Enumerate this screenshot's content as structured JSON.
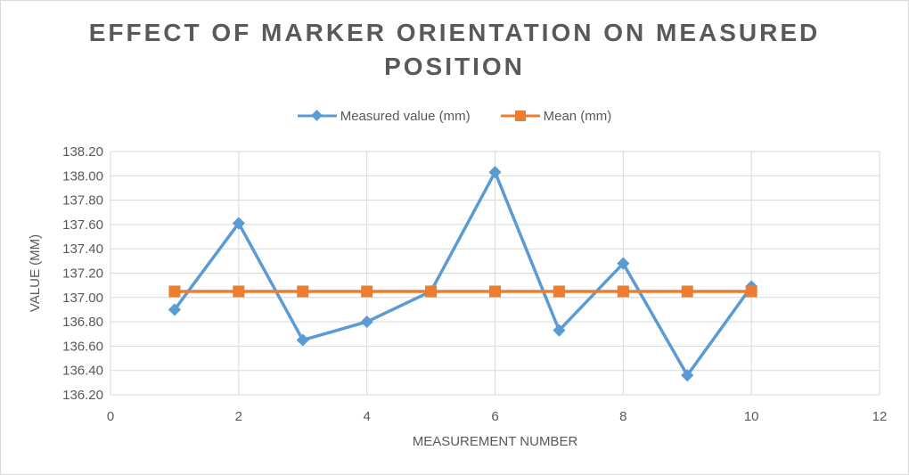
{
  "chart_data": {
    "type": "line",
    "title": "EFFECT OF MARKER ORIENTATION ON MEASURED POSITION",
    "xlabel": "MEASUREMENT NUMBER",
    "ylabel": "VALUE (MM)",
    "xlim": [
      0,
      12
    ],
    "ylim": [
      136.2,
      138.2
    ],
    "x_ticks": [
      "0",
      "2",
      "4",
      "6",
      "8",
      "10",
      "12"
    ],
    "y_ticks": [
      "136.20",
      "136.40",
      "136.60",
      "136.80",
      "137.00",
      "137.20",
      "137.40",
      "137.60",
      "137.80",
      "138.00",
      "138.20"
    ],
    "grid": true,
    "legend_position": "top",
    "x": [
      1,
      2,
      3,
      4,
      5,
      6,
      7,
      8,
      9,
      10
    ],
    "series": [
      {
        "name": "Measured value (mm)",
        "color": "#5b9bd5",
        "marker": "diamond",
        "values": [
          136.9,
          137.61,
          136.65,
          136.8,
          137.05,
          138.03,
          136.73,
          137.28,
          136.36,
          137.09
        ]
      },
      {
        "name": "Mean (mm)",
        "color": "#ed7d31",
        "marker": "square",
        "values": [
          137.05,
          137.05,
          137.05,
          137.05,
          137.05,
          137.05,
          137.05,
          137.05,
          137.05,
          137.05
        ]
      }
    ]
  }
}
